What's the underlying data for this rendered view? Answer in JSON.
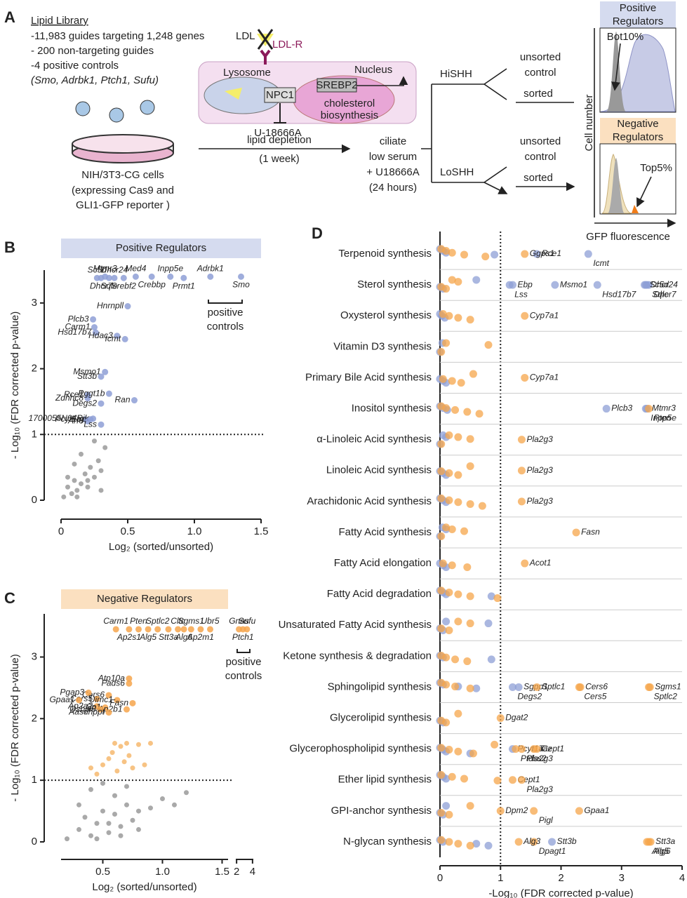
{
  "figure_a": {
    "letter": "A",
    "library_title": "Lipid Library",
    "library_lines": [
      "-11,983 guides targeting 1,248 genes",
      "- 200 non-targeting guides",
      "-4 positive controls",
      "(Smo, Adrbk1, Ptch1, Sufu)"
    ],
    "cell_lines": [
      "NIH/3T3-CG cells",
      "(expressing Cas9 and",
      "GLI1-GFP reporter )"
    ],
    "ldl": "LDL",
    "ldlr": "LDL-R",
    "lysosome": "Lysosome",
    "npc1": "NPC1",
    "drug": "U-18666A",
    "nucleus": "Nucleus",
    "srebp2": "SREBP2",
    "chol_lines": [
      "cholesterol",
      "biosynthesis"
    ],
    "depletion": [
      "lipid depletion",
      "(1 week)"
    ],
    "ciliate": [
      "ciliate",
      "low serum",
      "+ U18666A",
      "(24 hours)"
    ],
    "hi": "HiSHH",
    "lo": "LoSHH",
    "unsorted_hi": [
      "unsorted",
      "control"
    ],
    "sorted_hi": "sorted",
    "unsorted_lo": [
      "unsorted",
      "control"
    ],
    "sorted_lo": "sorted",
    "pos_box": [
      "Positive",
      "Regulators"
    ],
    "neg_box": [
      "Negative",
      "Regulators"
    ],
    "bot": "Bot10%",
    "top": "Top5%",
    "cell_number": "Cell number",
    "gfp": "GFP fluorescence"
  },
  "chart_data": [
    {
      "type": "scatter",
      "letter": "B",
      "title": "Positive Regulators",
      "x_label": "Log₂ (sorted/unsorted)",
      "y_label": "- Log₁₀ (FDR corrected p-value)",
      "xlim": [
        0,
        1.5
      ],
      "ylim": [
        0,
        3.5
      ],
      "xticks": [
        0,
        0.5,
        {
          "value": 1,
          "label": "1.0"
        },
        1.5
      ],
      "yticks": [
        0,
        1,
        2,
        3
      ],
      "threshold": 1,
      "controls_label": [
        "positive",
        "controls"
      ],
      "series": [
        {
          "color": "#8e9fd6",
          "x": [
            0.27,
            0.3,
            0.33,
            0.36,
            0.4,
            0.47,
            0.56,
            0.68,
            0.82,
            0.92,
            1.12,
            1.35,
            0.5,
            0.24,
            0.25,
            0.26,
            0.42,
            0.48,
            0.33,
            0.3,
            0.2,
            0.2,
            0.36,
            0.55,
            0.3,
            0.18,
            0.22,
            0.24,
            0.2,
            0.3
          ],
          "y": [
            3.38,
            3.38,
            3.4,
            3.38,
            3.38,
            3.38,
            3.4,
            3.4,
            3.4,
            3.38,
            3.4,
            3.4,
            2.95,
            2.75,
            2.63,
            2.55,
            2.5,
            2.45,
            1.95,
            1.88,
            1.6,
            1.55,
            1.62,
            1.52,
            1.47,
            1.23,
            1.23,
            1.24,
            1.2,
            1.15
          ],
          "labels": [
            "Sc5d",
            "Dhcr7",
            "Mtmr3",
            "Sqle",
            "Dhcr24",
            "Srebf2",
            "Med4",
            "Crebbp",
            "Inpp5e",
            "Prmt1",
            "Adrbk1",
            "Smo",
            "Hnrnpll",
            "Plcb3",
            "Carm1",
            "Hsd17b7",
            "Hdac3",
            "Icmt",
            "Msmo1",
            "Stt3b",
            "Rce1",
            "Zdhhc8",
            "Pggt1b",
            "Ran",
            "Degs2",
            "Pcyt1a",
            "Ebp",
            "1700055N04Rik",
            "Arf3",
            "Lss"
          ]
        },
        {
          "color": "#9a9a9a",
          "x": [
            0.02,
            0.05,
            0.08,
            0.1,
            0.12,
            0.15,
            0.18,
            0.2,
            0.22,
            0.25,
            0.28,
            0.3,
            0.33,
            0.05,
            0.1,
            0.15,
            0.2,
            0.25,
            0.12,
            0.3
          ],
          "y": [
            0.05,
            0.2,
            0.1,
            0.3,
            0.15,
            0.25,
            0.4,
            0.2,
            0.5,
            0.35,
            0.6,
            0.45,
            0.8,
            0.35,
            0.55,
            0.7,
            0.3,
            0.9,
            0.05,
            0.15
          ]
        }
      ]
    },
    {
      "type": "scatter",
      "letter": "C",
      "title": "Negative Regulators",
      "x_label": "Log₂ (sorted/unsorted)",
      "y_label": "- Log₁₀ (FDR corrected p-value)",
      "xlim": [
        0.15,
        1.55
      ],
      "x2lim": [
        1.9,
        4.1
      ],
      "ylim": [
        0,
        3.7
      ],
      "xticks": [
        0.5,
        {
          "value": 1,
          "label": "1.0"
        },
        1.5
      ],
      "x2ticks": [
        2,
        4
      ],
      "yticks": [
        0,
        1,
        2,
        3
      ],
      "threshold": 1,
      "controls_label": [
        "positive",
        "controls"
      ],
      "series": [
        {
          "color": "#f6a54b",
          "x": [
            0.61,
            0.72,
            0.8,
            0.88,
            0.96,
            1.05,
            1.13,
            1.18,
            1.24,
            1.32,
            1.4,
            0.72,
            0.72,
            0.55,
            0.38,
            0.45,
            0.62,
            0.3,
            0.75,
            0.45,
            0.52,
            0.7,
            0.48,
            0.55
          ],
          "y": [
            3.45,
            3.45,
            3.45,
            3.45,
            3.45,
            3.45,
            3.45,
            3.45,
            3.45,
            3.45,
            3.45,
            2.65,
            2.57,
            2.38,
            2.42,
            2.32,
            2.3,
            2.3,
            2.25,
            2.2,
            2.18,
            2.15,
            2.15,
            2.1
          ],
          "labels": [
            "Carm1",
            "Ap2s1",
            "Pten",
            "Alg5",
            "Sptlc2",
            "Stt3a",
            "Cltc",
            "Alg6",
            "Sgms1",
            "Ap2m1",
            "Ubr5",
            "Atp10a",
            "Fads6",
            "Cers6",
            "Pgap3",
            "Cers5",
            "Uimc1",
            "Gpaa1",
            "Fasn",
            "Ap2a2",
            "Sp1",
            "Ap2b1",
            "Osbpl8",
            "Aasdhppt"
          ]
        },
        {
          "color": "#f6a54b",
          "axis": "x2",
          "x": [
            2.3,
            2.8,
            3.3
          ],
          "y": [
            3.45,
            3.45,
            3.45
          ],
          "labels": [
            "Gnas",
            "Ptch1",
            "Sufu"
          ]
        },
        {
          "color": "#f6b96e",
          "x": [
            0.6,
            0.65,
            0.7,
            0.72,
            0.8,
            0.9,
            0.5,
            0.55,
            0.62,
            0.68,
            0.75,
            0.4,
            0.45,
            0.58,
            0.85
          ],
          "y": [
            1.6,
            1.55,
            1.6,
            1.4,
            1.58,
            1.6,
            1.25,
            1.35,
            1.15,
            1.3,
            1.2,
            1.2,
            1.1,
            1.45,
            1.25
          ]
        },
        {
          "color": "#9a9a9a",
          "x": [
            0.2,
            0.3,
            0.35,
            0.4,
            0.45,
            0.5,
            0.55,
            0.6,
            0.65,
            0.7,
            0.75,
            0.8,
            0.9,
            1.0,
            1.1,
            1.2,
            0.3,
            0.4,
            0.5,
            0.6,
            0.7,
            0.8,
            0.45,
            0.55,
            0.65
          ],
          "y": [
            0.05,
            0.2,
            0.4,
            0.1,
            0.3,
            0.5,
            0.15,
            0.45,
            0.25,
            0.6,
            0.35,
            0.5,
            0.55,
            0.7,
            0.6,
            0.8,
            0.6,
            0.85,
            0.95,
            0.75,
            0.9,
            0.2,
            0.05,
            0.3,
            0.1
          ]
        }
      ]
    },
    {
      "type": "dot",
      "letter": "D",
      "x_label": "-Log₁₀ (FDR corrected p-value)",
      "xlim": [
        0,
        4
      ],
      "xticks": [
        0,
        1,
        2,
        3,
        4
      ],
      "threshold": 1,
      "colors": [
        "#8e9fd6",
        "#f6a54b"
      ],
      "rows": [
        {
          "category": "Terpenoid synthesis",
          "series": [
            [
              0,
              0.05,
              0.1,
              0.9,
              {
                "value": 1.6,
                "label": "Rce1"
              },
              {
                "value": 2.45,
                "label": "Icmt"
              }
            ],
            [
              0.02,
              0.1,
              0.2,
              0.4,
              0.75,
              {
                "value": 1.4,
                "label": "Ggps1"
              }
            ]
          ]
        },
        {
          "category": "Sterol synthesis",
          "series": [
            [
              0,
              0.05,
              0.6,
              {
                "value": 1.2,
                "label": "Ebp"
              },
              {
                "value": 1.15,
                "label": "Lss"
              },
              {
                "value": 1.9,
                "label": "Msmo1"
              },
              {
                "value": 2.6,
                "label": "Hsd17b7"
              },
              {
                "value": 3.4,
                "label": "Dhcr24"
              },
              {
                "value": 3.45,
                "label": "Dhcr7"
              },
              {
                "value": 3.38,
                "label": "Sc5d"
              },
              {
                "value": 3.42,
                "label": "Sqle"
              }
            ],
            [
              0.02,
              0.1,
              0.2,
              0.3
            ]
          ]
        },
        {
          "category": "Oxysterol synthesis",
          "series": [
            [
              0,
              0.03,
              0.08
            ],
            [
              0.05,
              0.15,
              0.3,
              0.5,
              {
                "value": 1.4,
                "label": "Cyp7a1"
              }
            ]
          ]
        },
        {
          "category": "Vitamin D3 synthesis",
          "series": [
            [
              0,
              0.04
            ],
            [
              0.02,
              0.1,
              0.8
            ]
          ]
        },
        {
          "category": "Primary Bile Acid synthesis",
          "series": [
            [
              0,
              0.05,
              0.1
            ],
            [
              0.05,
              0.2,
              0.35,
              0.55,
              {
                "value": 1.4,
                "label": "Cyp7a1"
              }
            ]
          ]
        },
        {
          "category": "Inositol synthesis",
          "series": [
            [
              0,
              0.05,
              0.12,
              {
                "value": 2.75,
                "label": "Plcb3"
              },
              {
                "value": 3.4,
                "label": "Inpp5e"
              },
              {
                "value": 3.42,
                "label": "Mtmr3"
              }
            ],
            [
              0.02,
              0.1,
              0.25,
              0.45,
              0.65,
              {
                "value": 3.45,
                "label": "Pten"
              }
            ]
          ]
        },
        {
          "category": "α-Linoleic Acid synthesis",
          "series": [
            [
              0,
              0.05,
              0.1
            ],
            [
              0.02,
              0.15,
              0.3,
              0.5,
              {
                "value": 1.35,
                "label": "Pla2g3"
              }
            ]
          ]
        },
        {
          "category": "Linoleic Acid synthesis",
          "series": [
            [
              0,
              0.05,
              0.1
            ],
            [
              0.02,
              0.15,
              0.3,
              0.5,
              {
                "value": 1.35,
                "label": "Pla2g3"
              }
            ]
          ]
        },
        {
          "category": "Arachidonic Acid synthesis",
          "series": [
            [
              0,
              0.05,
              0.1
            ],
            [
              0.02,
              0.15,
              0.3,
              0.5,
              0.7,
              {
                "value": 1.35,
                "label": "Pla2g3"
              }
            ]
          ]
        },
        {
          "category": "Fatty Acid synthesis",
          "series": [
            [
              0,
              0.04,
              0.1
            ],
            [
              0.02,
              0.1,
              0.2,
              0.4,
              {
                "value": 2.25,
                "label": "Fasn"
              }
            ]
          ]
        },
        {
          "category": "Fatty Acid elongation",
          "series": [
            [
              0,
              0.05,
              0.1
            ],
            [
              0.05,
              0.2,
              0.45,
              {
                "value": 1.4,
                "label": "Acot1"
              }
            ]
          ]
        },
        {
          "category": "Fatty Acid degradation",
          "series": [
            [
              0,
              0.05,
              0.1,
              0.85
            ],
            [
              0.02,
              0.15,
              0.3,
              0.5,
              0.95
            ]
          ]
        },
        {
          "category": "Unsaturated Fatty Acid synthesis",
          "series": [
            [
              0,
              0.05,
              0.1,
              0.8
            ],
            [
              0.02,
              0.15,
              0.3,
              0.5
            ]
          ]
        },
        {
          "category": "Ketone synthesis & degradation",
          "series": [
            [
              0,
              0.05,
              0.85
            ],
            [
              0.02,
              0.1,
              0.25,
              0.45
            ]
          ]
        },
        {
          "category": "Sphingolipid synthesis",
          "series": [
            [
              0,
              0.05,
              0.3,
              0.6,
              {
                "value": 1.3,
                "label": "Sgpp1"
              },
              {
                "value": 1.2,
                "label": "Degs2"
              }
            ],
            [
              0.02,
              0.1,
              0.25,
              0.5,
              {
                "value": 1.6,
                "label": "Sptlc1"
              },
              {
                "value": 2.3,
                "label": "Cers5"
              },
              {
                "value": 2.32,
                "label": "Cers6"
              },
              {
                "value": 3.45,
                "label": "Sptlc2"
              },
              {
                "value": 3.47,
                "label": "Sgms1"
              }
            ]
          ]
        },
        {
          "category": "Glycerolipid synthesis",
          "series": [
            [
              0,
              0.05
            ],
            [
              0.02,
              0.1,
              0.3,
              {
                "value": 1,
                "label": "Dgat2"
              }
            ]
          ]
        },
        {
          "category": "Glycerophospholipid synthesis",
          "series": [
            [
              0,
              0.05,
              0.1,
              0.5,
              {
                "value": 1.2,
                "label": "Pcyt1a"
              }
            ],
            [
              0.02,
              0.15,
              0.3,
              0.55,
              0.9,
              {
                "value": 1.35,
                "label": "Pla2g3"
              },
              {
                "value": 1.55,
                "label": "Taz"
              },
              {
                "value": 1.25,
                "label": "Ptdss2"
              },
              {
                "value": 1.6,
                "label": "Cept1"
              }
            ]
          ]
        },
        {
          "category": "Ether lipid synthesis",
          "series": [
            [
              0,
              0.05,
              0.1
            ],
            [
              0.02,
              0.2,
              0.4,
              0.95,
              {
                "value": 1.2,
                "label": "Cept1"
              },
              {
                "value": 1.35,
                "label": "Pla2g3"
              }
            ]
          ]
        },
        {
          "category": "GPI-anchor synthesis",
          "series": [
            [
              0,
              0.05,
              0.1
            ],
            [
              0.02,
              0.15,
              0.5,
              {
                "value": 1,
                "label": "Dpm2"
              },
              {
                "value": 1.55,
                "label": "Pigl"
              },
              {
                "value": 2.3,
                "label": "Gpaa1"
              }
            ]
          ]
        },
        {
          "category": "N-glycan synthesis",
          "series": [
            [
              0,
              0.05,
              0.6,
              0.8,
              {
                "value": 1.85,
                "label": "Stt3b"
              }
            ],
            [
              0.02,
              0.15,
              0.3,
              0.5,
              {
                "value": 1.55,
                "label": "Dpagt1"
              },
              {
                "value": 1.3,
                "label": "Alg3"
              },
              {
                "value": 3.45,
                "label": "Alg6"
              },
              {
                "value": 3.48,
                "label": "Stt3a"
              },
              {
                "value": 3.42,
                "label": "Alg5"
              }
            ]
          ]
        }
      ]
    }
  ]
}
